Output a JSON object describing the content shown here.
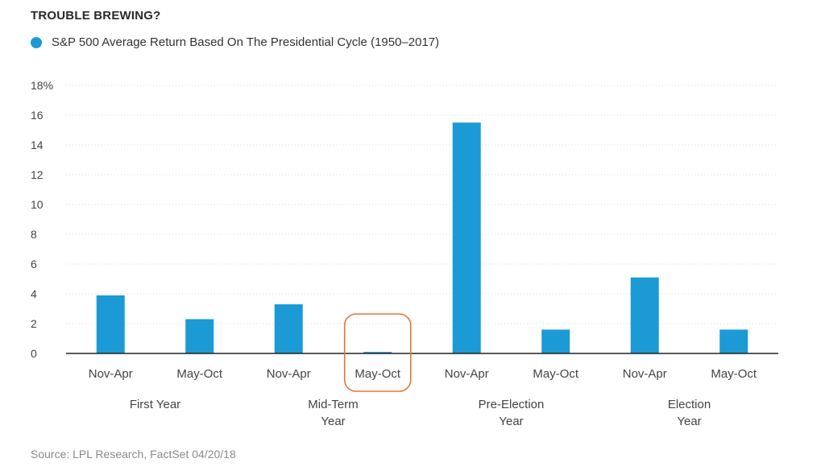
{
  "title": "TROUBLE BREWING?",
  "legend_label": "S&P 500 Average Return Based On The Presidential Cycle (1950–2017)",
  "source": "Source: LPL Research, FactSet 04/20/18",
  "colors": {
    "bar": "#1b9ad6",
    "highlight": "#e8743b",
    "grid": "#d9d9d9",
    "axis": "#222222",
    "text": "#444444"
  },
  "chart_data": {
    "type": "bar",
    "categories": [
      "Nov-Apr",
      "May-Oct",
      "Nov-Apr",
      "May-Oct",
      "Nov-Apr",
      "May-Oct",
      "Nov-Apr",
      "May-Oct"
    ],
    "groups": [
      {
        "label": [
          "First Year"
        ],
        "span": [
          0,
          1
        ]
      },
      {
        "label": [
          "Mid-Term",
          "Year"
        ],
        "span": [
          2,
          3
        ]
      },
      {
        "label": [
          "Pre-Election",
          "Year"
        ],
        "span": [
          4,
          5
        ]
      },
      {
        "label": [
          "Election",
          "Year"
        ],
        "span": [
          6,
          7
        ]
      }
    ],
    "series": [
      {
        "name": "S&P 500 Average Return Based On The Presidential Cycle (1950–2017)",
        "values": [
          3.9,
          2.3,
          3.3,
          0.1,
          15.5,
          1.6,
          5.1,
          1.6
        ]
      }
    ],
    "ylim": [
      0,
      18
    ],
    "yticks": [
      0,
      2,
      4,
      6,
      8,
      10,
      12,
      14,
      16,
      18
    ],
    "ytick_labels": [
      "0",
      "2",
      "4",
      "6",
      "8",
      "10",
      "12",
      "14",
      "16",
      "18%"
    ],
    "highlight_index": 3,
    "grid": true,
    "grid_style": "dotted"
  }
}
